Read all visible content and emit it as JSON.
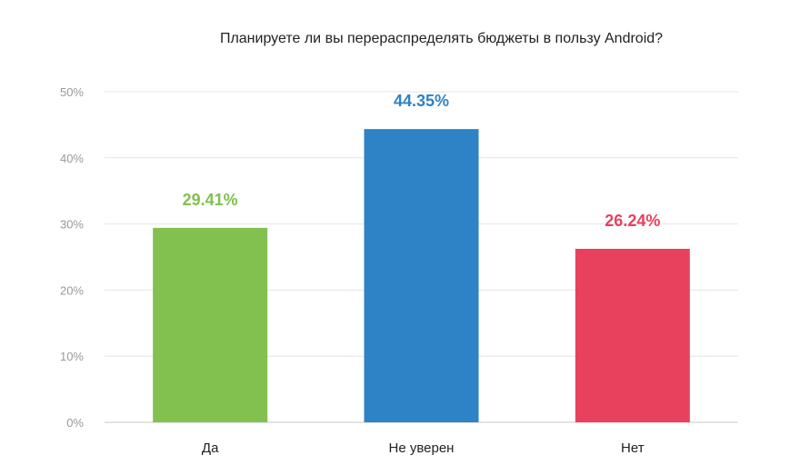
{
  "chart_data": {
    "type": "bar",
    "title": "Планируете ли вы перераспределять бюджеты в пользу Android?",
    "xlabel": "",
    "ylabel": "",
    "categories": [
      "Да",
      "Не уверен",
      "Нет"
    ],
    "values": [
      29.41,
      44.35,
      26.24
    ],
    "data_labels": [
      "29.41%",
      "44.35%",
      "26.24%"
    ],
    "bar_colors": [
      "#82c050",
      "#2e82c6",
      "#e8415e"
    ],
    "ylim": [
      0,
      50
    ],
    "yticks": [
      0,
      10,
      20,
      30,
      40,
      50
    ],
    "ytick_labels": [
      "0%",
      "10%",
      "20%",
      "30%",
      "40%",
      "50%"
    ],
    "grid": true,
    "legend": "none"
  }
}
